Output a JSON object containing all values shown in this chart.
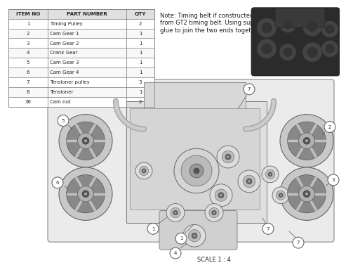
{
  "background_color": "#f5f5f0",
  "table": {
    "headers": [
      "ITEM NO",
      "PART NUMBER",
      "QTY"
    ],
    "rows": [
      [
        "1",
        "Timing Pulley",
        "2"
      ],
      [
        "2",
        "Cam Gear 1",
        "1"
      ],
      [
        "3",
        "Cam Gear 2",
        "1"
      ],
      [
        "4",
        "Crank Gear",
        "1"
      ],
      [
        "5",
        "Cam Gear 3",
        "1"
      ],
      [
        "6",
        "Cam Gear 4",
        "1"
      ],
      [
        "7",
        "Tensioner pulley",
        "3"
      ],
      [
        "8",
        "Tensioner",
        "1"
      ],
      [
        "36",
        "Cam nut",
        "2"
      ]
    ]
  },
  "note_text": "Note: Timing belt if constructed\nfrom GT2 timing belt. Using super\nglue to join the two ends together.",
  "scale_label": "SCALE 1 : 4",
  "text_color": "#222222",
  "border_color": "#888888",
  "header_bg": "#e0e0e0",
  "gear_color": "#d8d8d8",
  "gear_edge": "#555555",
  "body_color": "#e8e8e8",
  "body_edge": "#777777",
  "engine_bg": "#f0efec"
}
